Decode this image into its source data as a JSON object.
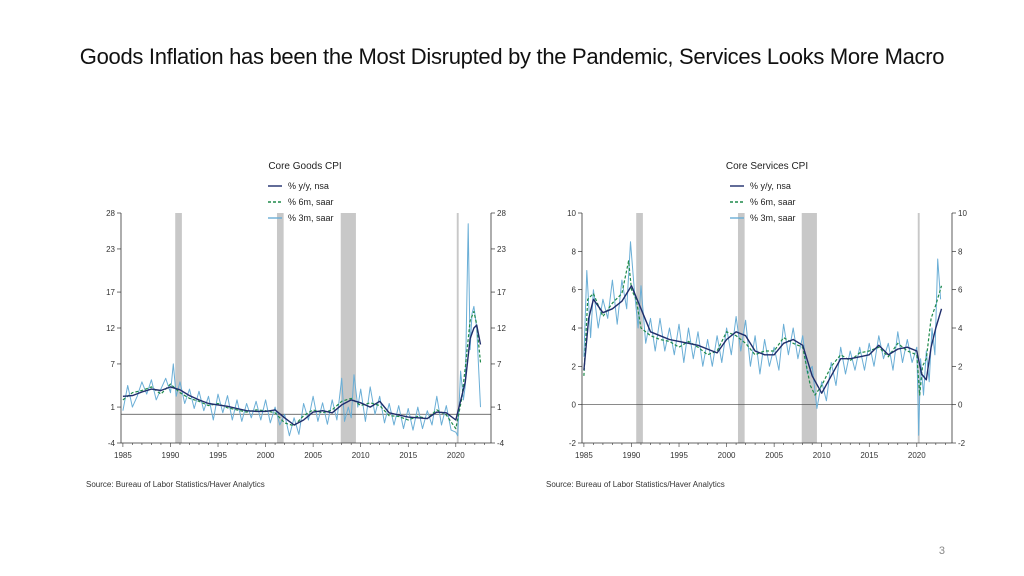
{
  "slide": {
    "title": "Goods Inflation has been the Most Disrupted by the Pandemic, Services Looks More Macro",
    "page_number": "3"
  },
  "colors": {
    "yy": "#1f2d6b",
    "m6": "#1e8a4a",
    "m3": "#6aaed6",
    "recession": "#c8c8c8",
    "axis": "#333333"
  },
  "sources": [
    "Source:  Bureau of Labor Statistics/Haver Analytics",
    "Source:  Bureau of Labor Statistics/Haver Analytics"
  ],
  "chart_data": [
    {
      "type": "line",
      "title": "Core Goods CPI",
      "xlim": [
        1984.8,
        2023.7
      ],
      "ylim": [
        -4,
        28
      ],
      "yticks": [
        -4,
        1,
        7,
        12,
        17,
        23,
        28
      ],
      "xticks": [
        1985,
        1990,
        1995,
        2000,
        2005,
        2010,
        2015,
        2020
      ],
      "zero_line": 0,
      "recessions": [
        [
          1990.5,
          1991.2
        ],
        [
          2001.2,
          2001.9
        ],
        [
          2007.9,
          2009.5
        ],
        [
          2020.1,
          2020.3
        ]
      ],
      "series": [
        {
          "name": "% y/y, nsa",
          "style": "solid",
          "color": "#1f2d6b",
          "x": [
            1985,
            1986,
            1987,
            1988,
            1989,
            1990,
            1991,
            1992,
            1993,
            1994,
            1995,
            1996,
            1997,
            1998,
            1999,
            2000,
            2001,
            2002,
            2003,
            2004,
            2005,
            2006,
            2007,
            2008,
            2009,
            2010,
            2011,
            2012,
            2013,
            2014,
            2015,
            2016,
            2017,
            2018,
            2019,
            2020,
            2021,
            2021.5,
            2021.9,
            2022.2,
            2022.6
          ],
          "y": [
            2.5,
            2.6,
            3.1,
            3.5,
            3.3,
            3.8,
            3.4,
            2.6,
            2.0,
            1.5,
            1.3,
            1.1,
            0.8,
            0.5,
            0.4,
            0.4,
            0.6,
            -0.5,
            -1.5,
            -0.8,
            0.3,
            0.5,
            0.2,
            1.3,
            2.0,
            1.6,
            1.0,
            1.8,
            0.2,
            -0.1,
            -0.4,
            -0.5,
            -0.6,
            0.3,
            0.2,
            -0.8,
            4.5,
            10.5,
            12.0,
            12.4,
            9.7
          ]
        },
        {
          "name": "% 6m, saar",
          "style": "dashed",
          "color": "#1e8a4a",
          "x": [
            1985,
            1986,
            1987,
            1988,
            1989,
            1990,
            1991,
            1992,
            1993,
            1994,
            1995,
            1996,
            1997,
            1998,
            1999,
            2000,
            2001,
            2002,
            2003,
            2004,
            2005,
            2006,
            2007,
            2008,
            2009,
            2010,
            2011,
            2012,
            2013,
            2014,
            2015,
            2016,
            2017,
            2018,
            2019,
            2020,
            2020.6,
            2021,
            2021.5,
            2021.9,
            2022.2,
            2022.6
          ],
          "y": [
            2.0,
            3.0,
            3.3,
            3.8,
            2.8,
            4.2,
            3.0,
            2.2,
            1.8,
            1.2,
            1.5,
            0.9,
            0.6,
            0.3,
            0.6,
            0.5,
            0.2,
            -1.2,
            -1.6,
            -0.2,
            0.6,
            0.2,
            0.6,
            1.8,
            2.2,
            1.2,
            1.6,
            1.2,
            -0.2,
            -0.3,
            -0.8,
            -0.3,
            -0.6,
            0.6,
            -0.1,
            -2.0,
            2.0,
            6.5,
            13.0,
            14.3,
            12.5,
            7.2
          ]
        },
        {
          "name": "% 3m, saar",
          "style": "solid",
          "color": "#6aaed6",
          "x": [
            1985,
            1985.5,
            1986,
            1986.5,
            1987,
            1987.5,
            1988,
            1988.5,
            1989,
            1989.5,
            1990,
            1990.3,
            1990.6,
            1991,
            1991.5,
            1992,
            1992.5,
            1993,
            1993.5,
            1994,
            1994.5,
            1995,
            1995.5,
            1996,
            1996.5,
            1997,
            1997.5,
            1998,
            1998.5,
            1999,
            1999.5,
            2000,
            2000.5,
            2001,
            2001.5,
            2002,
            2002.5,
            2003,
            2003.5,
            2004,
            2004.5,
            2005,
            2005.5,
            2006,
            2006.5,
            2007,
            2007.5,
            2008,
            2008.3,
            2008.7,
            2009,
            2009.3,
            2009.7,
            2010,
            2010.5,
            2011,
            2011.5,
            2012,
            2012.5,
            2013,
            2013.5,
            2014,
            2014.5,
            2015,
            2015.5,
            2016,
            2016.5,
            2017,
            2017.5,
            2018,
            2018.5,
            2019,
            2019.5,
            2020,
            2020.2,
            2020.5,
            2020.8,
            2021,
            2021.3,
            2021.5,
            2021.7,
            2021.9,
            2022.2,
            2022.6
          ],
          "y": [
            0.5,
            4.0,
            1.0,
            2.5,
            4.5,
            2.8,
            4.8,
            2.0,
            3.5,
            5.0,
            3.0,
            7.0,
            2.5,
            4.5,
            1.5,
            3.5,
            0.8,
            3.2,
            0.5,
            2.5,
            -0.8,
            2.8,
            0.2,
            2.6,
            -0.8,
            2.0,
            -1.0,
            1.5,
            -0.5,
            1.8,
            -0.8,
            2.0,
            -1.2,
            1.0,
            -1.5,
            0.0,
            -3.0,
            -0.5,
            -2.8,
            1.5,
            -0.8,
            2.5,
            -1.0,
            1.6,
            -1.4,
            2.0,
            -0.8,
            5.0,
            -1.0,
            1.0,
            -0.5,
            5.5,
            1.0,
            3.5,
            -1.0,
            3.8,
            0.0,
            2.5,
            -1.2,
            1.5,
            -1.5,
            1.2,
            -2.0,
            0.8,
            -2.2,
            1.0,
            -2.0,
            0.5,
            -1.5,
            2.5,
            -1.5,
            1.2,
            -2.2,
            -2.5,
            -3.0,
            6.0,
            2.0,
            4.0,
            26.5,
            9.0,
            14.0,
            15.0,
            12.0,
            1.0
          ]
        }
      ]
    },
    {
      "type": "line",
      "title": "Core Services CPI",
      "xlim": [
        1984.8,
        2023.7
      ],
      "ylim": [
        -2,
        10
      ],
      "yticks": [
        -2,
        0,
        2,
        4,
        6,
        8,
        10
      ],
      "xticks": [
        1985,
        1990,
        1995,
        2000,
        2005,
        2010,
        2015,
        2020
      ],
      "zero_line": 0,
      "recessions": [
        [
          1990.5,
          1991.2
        ],
        [
          2001.2,
          2001.9
        ],
        [
          2007.9,
          2009.5
        ],
        [
          2020.1,
          2020.3
        ]
      ],
      "series": [
        {
          "name": "% y/y, nsa",
          "style": "solid",
          "color": "#1f2d6b",
          "x": [
            1985,
            1985.5,
            1986,
            1987,
            1988,
            1989,
            1990,
            1991,
            1992,
            1993,
            1994,
            1995,
            1996,
            1997,
            1998,
            1999,
            2000,
            2001,
            2002,
            2003,
            2004,
            2005,
            2006,
            2007,
            2008,
            2009,
            2010,
            2011,
            2012,
            2013,
            2014,
            2015,
            2016,
            2017,
            2018,
            2019,
            2020,
            2020.5,
            2021,
            2021.5,
            2022,
            2022.6
          ],
          "y": [
            1.8,
            4.5,
            5.5,
            4.8,
            5.0,
            5.4,
            6.2,
            5.0,
            3.8,
            3.6,
            3.4,
            3.3,
            3.2,
            3.1,
            2.9,
            2.7,
            3.4,
            3.8,
            3.6,
            2.8,
            2.6,
            2.6,
            3.2,
            3.4,
            3.1,
            1.5,
            0.6,
            1.5,
            2.4,
            2.4,
            2.5,
            2.6,
            3.1,
            2.6,
            2.9,
            3.0,
            2.8,
            1.6,
            1.3,
            3.0,
            4.0,
            5.0
          ]
        },
        {
          "name": "% 6m, saar",
          "style": "dashed",
          "color": "#1e8a4a",
          "x": [
            1985,
            1985.4,
            1986,
            1987,
            1988,
            1989,
            1989.7,
            1990,
            1990.5,
            1991,
            1992,
            1993,
            1994,
            1995,
            1996,
            1997,
            1998,
            1999,
            2000,
            2001,
            2002,
            2003,
            2004,
            2005,
            2006,
            2007,
            2008,
            2008.8,
            2009.3,
            2010,
            2011,
            2012,
            2013,
            2014,
            2015,
            2016,
            2017,
            2018,
            2019,
            2020,
            2020.3,
            2020.6,
            2021,
            2021.5,
            2022,
            2022.6
          ],
          "y": [
            1.5,
            5.5,
            5.8,
            4.6,
            5.3,
            5.8,
            7.5,
            6.0,
            5.5,
            4.0,
            3.6,
            3.4,
            3.3,
            3.0,
            3.3,
            3.0,
            2.6,
            2.8,
            3.8,
            3.6,
            3.2,
            2.6,
            2.8,
            2.8,
            3.5,
            3.2,
            3.0,
            1.0,
            0.5,
            1.0,
            2.0,
            2.6,
            2.3,
            2.7,
            2.8,
            3.0,
            2.5,
            3.2,
            2.8,
            2.6,
            0.5,
            2.0,
            2.4,
            4.5,
            5.2,
            6.2
          ]
        },
        {
          "name": "% 3m, saar",
          "style": "solid",
          "color": "#6aaed6",
          "x": [
            1985,
            1985.3,
            1985.7,
            1986,
            1986.5,
            1987,
            1987.5,
            1988,
            1988.5,
            1989,
            1989.5,
            1989.9,
            1990.3,
            1990.7,
            1991,
            1991.5,
            1992,
            1992.5,
            1993,
            1993.5,
            1994,
            1994.5,
            1995,
            1995.5,
            1996,
            1996.5,
            1997,
            1997.5,
            1998,
            1998.5,
            1999,
            1999.5,
            2000,
            2000.5,
            2001,
            2001.5,
            2002,
            2002.5,
            2003,
            2003.5,
            2004,
            2004.5,
            2005,
            2005.5,
            2006,
            2006.5,
            2007,
            2007.5,
            2008,
            2008.5,
            2009,
            2009.5,
            2010,
            2010.5,
            2011,
            2011.5,
            2012,
            2012.5,
            2013,
            2013.5,
            2014,
            2014.5,
            2015,
            2015.5,
            2016,
            2016.5,
            2017,
            2017.5,
            2018,
            2018.5,
            2019,
            2019.5,
            2020,
            2020.2,
            2020.4,
            2020.7,
            2021,
            2021.3,
            2021.6,
            2021.9,
            2022.2,
            2022.5
          ],
          "y": [
            2.5,
            7.0,
            3.5,
            6.0,
            4.0,
            5.5,
            4.5,
            6.5,
            4.2,
            6.5,
            5.0,
            8.5,
            6.0,
            4.0,
            6.2,
            3.2,
            4.5,
            2.8,
            4.5,
            2.8,
            4.0,
            2.6,
            4.2,
            2.2,
            4.0,
            2.4,
            3.8,
            2.0,
            3.4,
            2.0,
            3.6,
            2.2,
            4.0,
            2.6,
            4.6,
            2.8,
            4.4,
            2.0,
            3.6,
            1.6,
            3.4,
            2.0,
            3.0,
            1.8,
            4.2,
            2.6,
            4.0,
            2.4,
            3.6,
            1.6,
            2.0,
            -0.2,
            1.2,
            0.2,
            2.2,
            1.0,
            3.0,
            1.6,
            2.8,
            1.8,
            3.0,
            1.8,
            3.2,
            2.0,
            3.6,
            2.4,
            3.2,
            1.8,
            3.8,
            2.2,
            3.4,
            2.2,
            3.0,
            -1.6,
            2.4,
            0.5,
            2.8,
            1.2,
            4.0,
            2.6,
            7.6,
            5.5
          ]
        }
      ]
    }
  ]
}
